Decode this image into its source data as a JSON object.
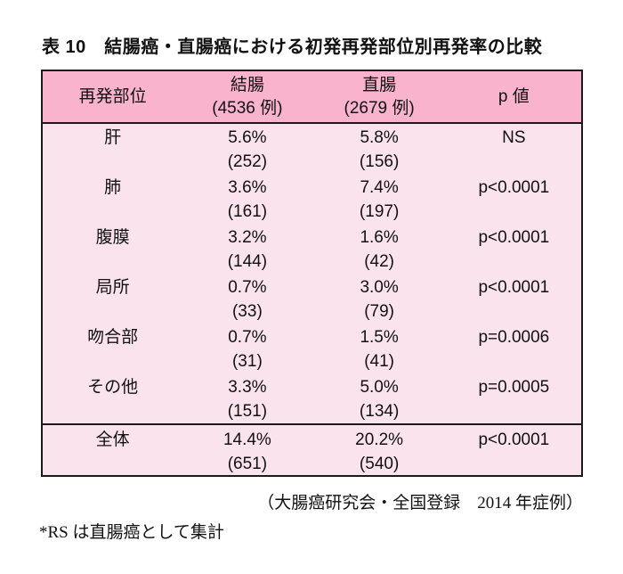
{
  "page": {
    "title": "表 10　結腸癌・直腸癌における初発再発部位別再発率の比較",
    "source_note": "（大腸癌研究会・全国登録　2014 年症例）",
    "footnote": "*RS は直腸癌として集計",
    "colors": {
      "header_pink": "#f9b3cc",
      "body_pink": "#fae3ed",
      "border": "#1a1a1a",
      "background": "#ffffff"
    }
  },
  "table": {
    "header": {
      "site": "再発部位",
      "colon_line1": "結腸",
      "colon_line2": "(4536 例)",
      "rectum_line1": "直腸",
      "rectum_line2": "(2679 例)",
      "p": "p 値"
    },
    "rows": [
      {
        "site": "肝",
        "colon_pct": "5.6%",
        "colon_n": "(252)",
        "rectum_pct": "5.8%",
        "rectum_n": "(156)",
        "p": "NS"
      },
      {
        "site": "肺",
        "colon_pct": "3.6%",
        "colon_n": "(161)",
        "rectum_pct": "7.4%",
        "rectum_n": "(197)",
        "p": "p<0.0001"
      },
      {
        "site": "腹膜",
        "colon_pct": "3.2%",
        "colon_n": "(144)",
        "rectum_pct": "1.6%",
        "rectum_n": "(42)",
        "p": "p<0.0001"
      },
      {
        "site": "局所",
        "colon_pct": "0.7%",
        "colon_n": "(33)",
        "rectum_pct": "3.0%",
        "rectum_n": "(79)",
        "p": "p<0.0001"
      },
      {
        "site": "吻合部",
        "colon_pct": "0.7%",
        "colon_n": "(31)",
        "rectum_pct": "1.5%",
        "rectum_n": "(41)",
        "p": "p=0.0006"
      },
      {
        "site": "その他",
        "colon_pct": "3.3%",
        "colon_n": "(151)",
        "rectum_pct": "5.0%",
        "rectum_n": "(134)",
        "p": "p=0.0005"
      }
    ],
    "total": {
      "site": "全体",
      "colon_pct": "14.4%",
      "colon_n": "(651)",
      "rectum_pct": "20.2%",
      "rectum_n": "(540)",
      "p": "p<0.0001"
    }
  },
  "chart_data": {
    "type": "table",
    "title": "表10 結腸癌・直腸癌における初発再発部位別再発率の比較",
    "columns": [
      "再発部位",
      "結腸 (4536例)",
      "直腸 (2679例)",
      "p値"
    ],
    "rows": [
      [
        "肝",
        "5.6% (252)",
        "5.8% (156)",
        "NS"
      ],
      [
        "肺",
        "3.6% (161)",
        "7.4% (197)",
        "p<0.0001"
      ],
      [
        "腹膜",
        "3.2% (144)",
        "1.6% (42)",
        "p<0.0001"
      ],
      [
        "局所",
        "0.7% (33)",
        "3.0% (79)",
        "p<0.0001"
      ],
      [
        "吻合部",
        "0.7% (31)",
        "1.5% (41)",
        "p=0.0006"
      ],
      [
        "その他",
        "3.3% (151)",
        "5.0% (134)",
        "p=0.0005"
      ],
      [
        "全体",
        "14.4% (651)",
        "20.2% (540)",
        "p<0.0001"
      ]
    ]
  }
}
